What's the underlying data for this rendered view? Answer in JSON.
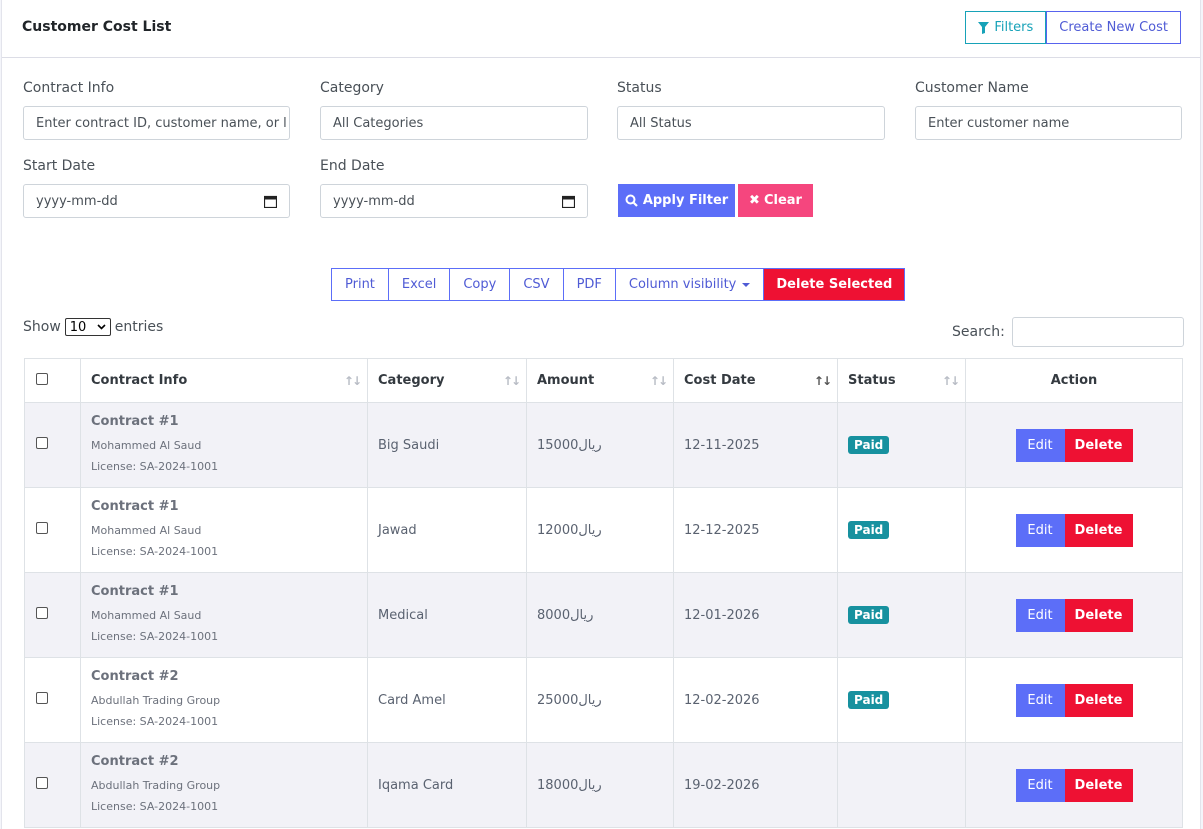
{
  "header": {
    "title": "Customer Cost List",
    "filters_label": "Filters",
    "create_label": "Create New Cost"
  },
  "filters": {
    "contract_info": {
      "label": "Contract Info",
      "placeholder": "Enter contract ID, customer name, or l"
    },
    "category": {
      "label": "Category",
      "value": "All Categories"
    },
    "status": {
      "label": "Status",
      "value": "All Status"
    },
    "customer_name": {
      "label": "Customer Name",
      "placeholder": "Enter customer name"
    },
    "start_date": {
      "label": "Start Date",
      "placeholder": "yyyy-mm-dd"
    },
    "end_date": {
      "label": "End Date",
      "placeholder": "yyyy-mm-dd"
    },
    "apply_label": "Apply Filter",
    "clear_label": "Clear"
  },
  "toolbar": {
    "print": "Print",
    "excel": "Excel",
    "copy": "Copy",
    "csv": "CSV",
    "pdf": "PDF",
    "column_visibility": "Column visibility",
    "delete_selected": "Delete Selected"
  },
  "table_controls": {
    "show_label": "Show",
    "entries_value": "10",
    "entries_label": "entries",
    "search_label": "Search:"
  },
  "table": {
    "columns": [
      "Contract Info",
      "Category",
      "Amount",
      "Cost Date",
      "Status",
      "Action"
    ],
    "edit_label": "Edit",
    "delete_label": "Delete",
    "rows": [
      {
        "contract": "Contract #1",
        "customer": "Mohammed Al Saud",
        "license": "License: SA-2024-1001",
        "category": "Big Saudi",
        "amount": "15000ريال",
        "date": "12-11-2025",
        "status": "Paid"
      },
      {
        "contract": "Contract #1",
        "customer": "Mohammed Al Saud",
        "license": "License: SA-2024-1001",
        "category": "Jawad",
        "amount": "12000ريال",
        "date": "12-12-2025",
        "status": "Paid"
      },
      {
        "contract": "Contract #1",
        "customer": "Mohammed Al Saud",
        "license": "License: SA-2024-1001",
        "category": "Medical",
        "amount": "8000ريال",
        "date": "12-01-2026",
        "status": "Paid"
      },
      {
        "contract": "Contract #2",
        "customer": "Abdullah Trading Group",
        "license": "License: SA-2024-1001",
        "category": "Card Amel",
        "amount": "25000ريال",
        "date": "12-02-2026",
        "status": "Paid"
      },
      {
        "contract": "Contract #2",
        "customer": "Abdullah Trading Group",
        "license": "License: SA-2024-1001",
        "category": "Iqama Card",
        "amount": "18000ريال",
        "date": "19-02-2026",
        "status": ""
      }
    ]
  },
  "colors": {
    "primary": "#5c6ef8",
    "danger": "#ee1133",
    "info": "#17a2b8",
    "pink": "#f5467e",
    "badge": "#17919f"
  }
}
